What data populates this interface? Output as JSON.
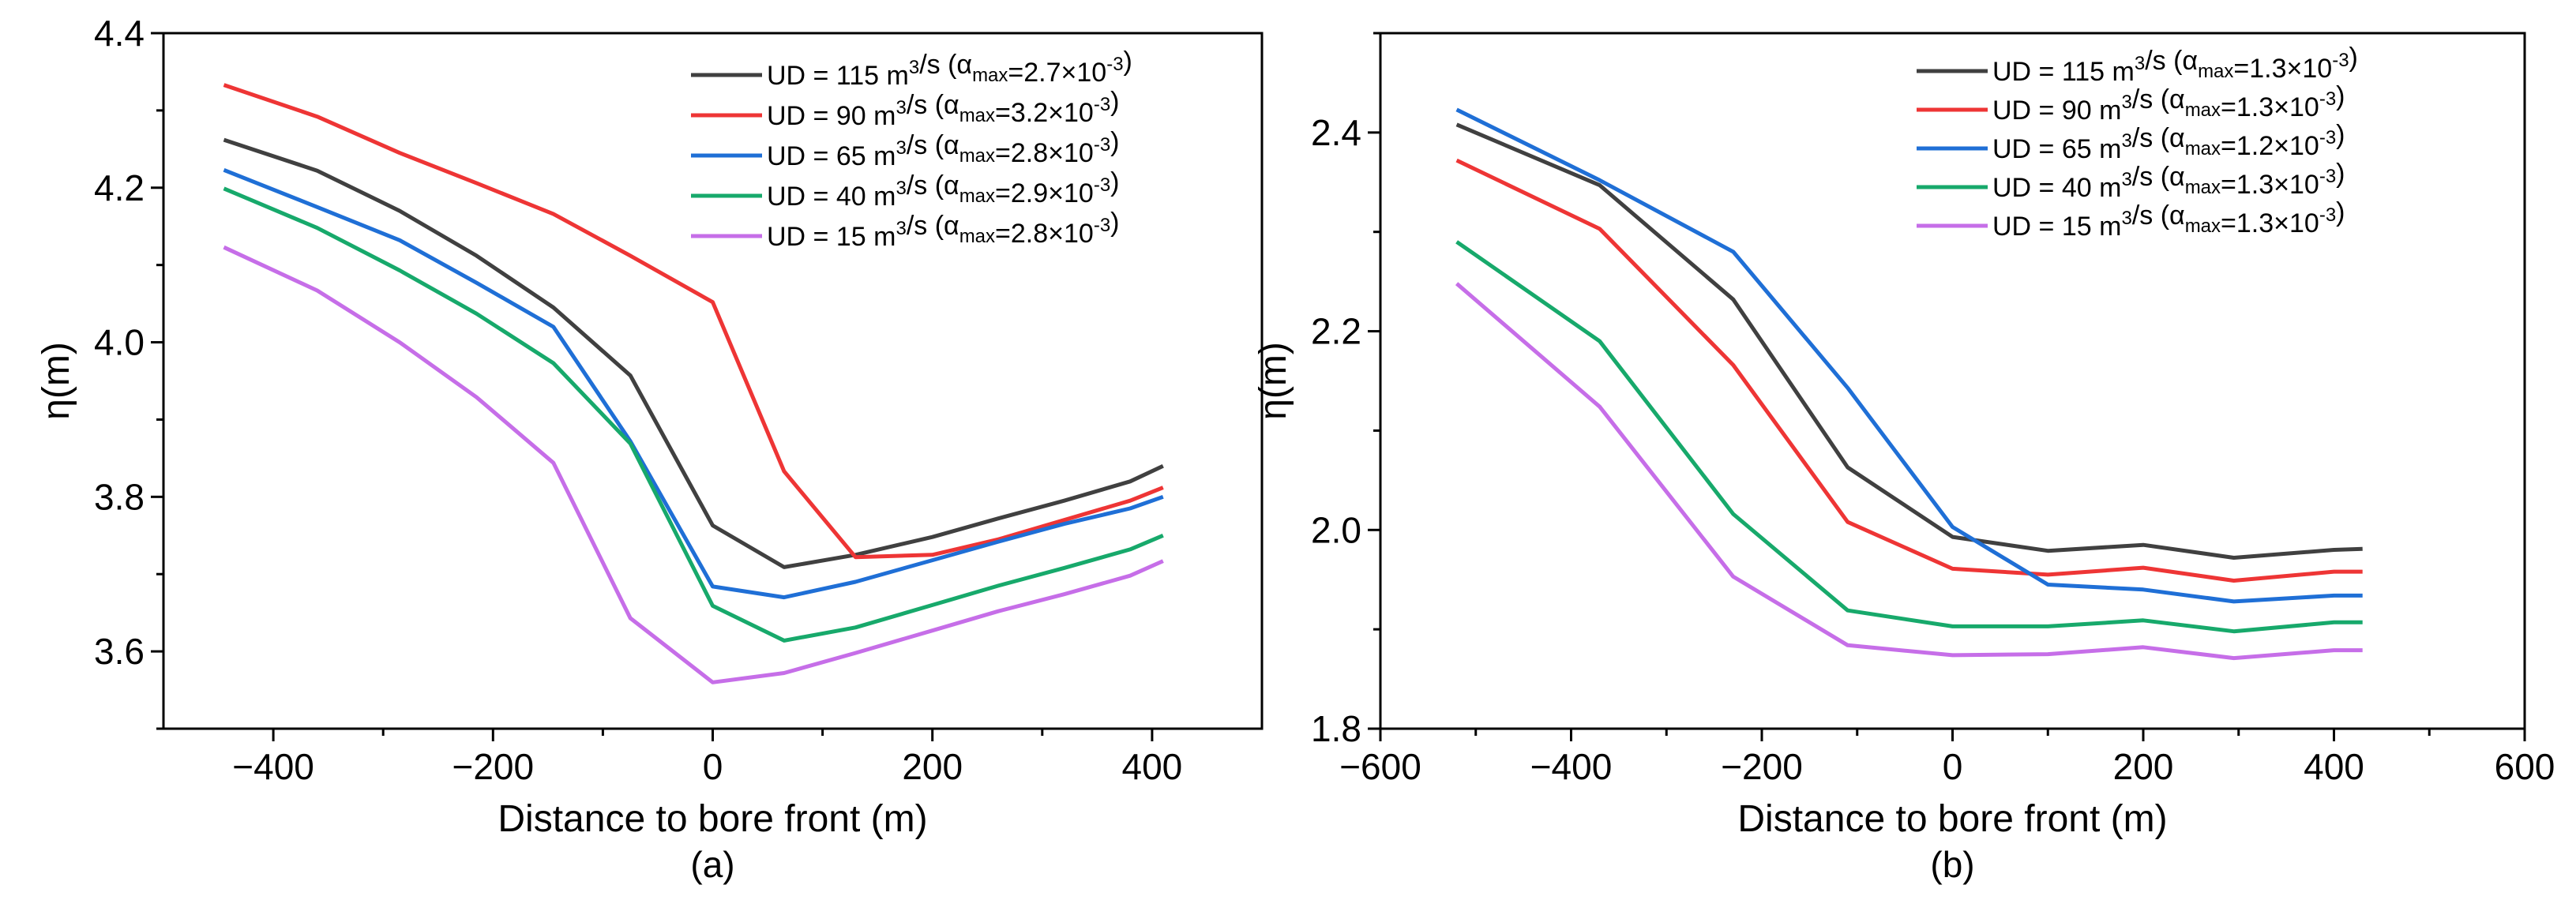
{
  "chart_data": [
    {
      "type": "line",
      "panel_label": "(a)",
      "xlabel": "Distance to bore front (m)",
      "ylabel": "η(m)",
      "xlim": [
        -500,
        500
      ],
      "ylim": [
        3.5,
        4.4
      ],
      "xticks": [
        -400,
        -200,
        0,
        200,
        400
      ],
      "xtick_labels": [
        "−400",
        "−200",
        "0",
        "200",
        "400"
      ],
      "yticks": [
        3.6,
        3.8,
        4.0,
        4.2,
        4.4
      ],
      "ytick_labels": [
        "3.6",
        "3.8",
        "4.0",
        "4.2",
        "4.4"
      ],
      "grid": false,
      "legend_position": "top-right",
      "series": [
        {
          "name": "UD = 115 m3/s (αmax=2.7×10-3)",
          "legend": {
            "ud": "UD = 115 m",
            "rate": "3",
            "unit": "/s (α",
            "sub": "max",
            "eq": "=2.7×10",
            "exp": "-3",
            "close": ")"
          },
          "color": "#404040",
          "x": [
            -445,
            -360,
            -285,
            -215,
            -145,
            -75,
            0,
            65,
            130,
            200,
            260,
            320,
            380,
            410
          ],
          "y": [
            4.262,
            4.222,
            4.17,
            4.112,
            4.045,
            3.957,
            3.763,
            3.709,
            3.725,
            3.748,
            3.772,
            3.795,
            3.82,
            3.84
          ]
        },
        {
          "name": "UD = 90 m3/s (αmax=3.2×10-3)",
          "legend": {
            "ud": "UD = 90 m",
            "rate": "3",
            "unit": "/s (α",
            "sub": "max",
            "eq": "=3.2×10",
            "exp": "-3",
            "close": ")"
          },
          "color": "#ee3535",
          "x": [
            -445,
            -360,
            -285,
            -215,
            -145,
            -75,
            0,
            65,
            130,
            200,
            260,
            320,
            380,
            410
          ],
          "y": [
            4.333,
            4.292,
            4.245,
            4.206,
            4.166,
            4.112,
            4.052,
            3.833,
            3.722,
            3.725,
            3.745,
            3.77,
            3.795,
            3.812
          ]
        },
        {
          "name": "UD = 65 m3/s (αmax=2.8×10-3)",
          "legend": {
            "ud": "UD = 65 m",
            "rate": "3",
            "unit": "/s (α",
            "sub": "max",
            "eq": "=2.8×10",
            "exp": "-3",
            "close": ")"
          },
          "color": "#1f6fd6",
          "x": [
            -445,
            -360,
            -285,
            -215,
            -145,
            -75,
            0,
            65,
            130,
            200,
            260,
            320,
            380,
            410
          ],
          "y": [
            4.223,
            4.175,
            4.132,
            4.077,
            4.02,
            3.872,
            3.684,
            3.67,
            3.69,
            3.718,
            3.742,
            3.765,
            3.785,
            3.8
          ]
        },
        {
          "name": "UD = 40 m3/s (αmax=2.9×10-3)",
          "legend": {
            "ud": "UD = 40 m",
            "rate": "3",
            "unit": "/s (α",
            "sub": "max",
            "eq": "=2.9×10",
            "exp": "-3",
            "close": ")"
          },
          "color": "#17a96b",
          "x": [
            -445,
            -360,
            -285,
            -215,
            -145,
            -75,
            0,
            65,
            130,
            200,
            260,
            320,
            380,
            410
          ],
          "y": [
            4.199,
            4.148,
            4.093,
            4.037,
            3.973,
            3.869,
            3.659,
            3.614,
            3.631,
            3.66,
            3.685,
            3.708,
            3.732,
            3.75
          ]
        },
        {
          "name": "UD = 15 m3/s (αmax=2.8×10-3)",
          "legend": {
            "ud": "UD = 15 m",
            "rate": "3",
            "unit": "/s (α",
            "sub": "max",
            "eq": "=2.8×10",
            "exp": "-3",
            "close": ")"
          },
          "color": "#c66ee8",
          "x": [
            -445,
            -360,
            -285,
            -215,
            -145,
            -75,
            0,
            65,
            130,
            200,
            260,
            320,
            380,
            410
          ],
          "y": [
            4.123,
            4.067,
            4.0,
            3.929,
            3.844,
            3.643,
            3.56,
            3.572,
            3.598,
            3.627,
            3.652,
            3.674,
            3.698,
            3.717
          ]
        }
      ]
    },
    {
      "type": "line",
      "panel_label": "(b)",
      "xlabel": "Distance to bore front (m)",
      "ylabel": "η(m)",
      "xlim": [
        -600,
        600
      ],
      "ylim": [
        1.8,
        2.5
      ],
      "xticks": [
        -600,
        -400,
        -200,
        0,
        200,
        400,
        600
      ],
      "xtick_labels": [
        "−600",
        "−400",
        "−200",
        "0",
        "200",
        "400",
        "600"
      ],
      "yticks": [
        1.8,
        2.0,
        2.2,
        2.4
      ],
      "ytick_labels": [
        "1.8",
        "2.0",
        "2.2",
        "2.4"
      ],
      "grid": false,
      "legend_position": "top-right",
      "series": [
        {
          "name": "UD = 115 m3/s (αmax=1.3×10-3)",
          "legend": {
            "ud": "UD = 115 m",
            "rate": "3",
            "unit": "/s (α",
            "sub": "max",
            "eq": "=1.3×10",
            "exp": "-3",
            "close": ")"
          },
          "color": "#404040",
          "x": [
            -520,
            -370,
            -230,
            -110,
            0,
            100,
            200,
            295,
            400,
            430
          ],
          "y": [
            2.408,
            2.347,
            2.232,
            2.063,
            1.993,
            1.979,
            1.985,
            1.972,
            1.98,
            1.981
          ]
        },
        {
          "name": "UD = 90 m3/s (αmax=1.3×10-3)",
          "legend": {
            "ud": "UD = 90 m",
            "rate": "3",
            "unit": "/s (α",
            "sub": "max",
            "eq": "=1.3×10",
            "exp": "-3",
            "close": ")"
          },
          "color": "#ee3535",
          "x": [
            -520,
            -370,
            -230,
            -110,
            0,
            100,
            200,
            295,
            400,
            430
          ],
          "y": [
            2.372,
            2.303,
            2.166,
            2.008,
            1.961,
            1.955,
            1.962,
            1.949,
            1.958,
            1.958
          ]
        },
        {
          "name": "UD = 65 m3/s (αmax=1.2×10-3)",
          "legend": {
            "ud": "UD = 65 m",
            "rate": "3",
            "unit": "/s (α",
            "sub": "max",
            "eq": "=1.2×10",
            "exp": "-3",
            "close": ")"
          },
          "color": "#1f6fd6",
          "x": [
            -520,
            -370,
            -230,
            -110,
            0,
            100,
            200,
            295,
            400,
            430
          ],
          "y": [
            2.423,
            2.352,
            2.28,
            2.143,
            2.003,
            1.945,
            1.94,
            1.928,
            1.934,
            1.934
          ]
        },
        {
          "name": "UD = 40 m3/s (αmax=1.3×10-3)",
          "legend": {
            "ud": "UD = 40 m",
            "rate": "3",
            "unit": "/s (α",
            "sub": "max",
            "eq": "=1.3×10",
            "exp": "-3",
            "close": ")"
          },
          "color": "#17a96b",
          "x": [
            -520,
            -370,
            -230,
            -110,
            0,
            100,
            200,
            295,
            400,
            430
          ],
          "y": [
            2.29,
            2.19,
            2.016,
            1.919,
            1.903,
            1.903,
            1.909,
            1.898,
            1.907,
            1.907
          ]
        },
        {
          "name": "UD = 15 m3/s (αmax=1.3×10-3)",
          "legend": {
            "ud": "UD = 15 m",
            "rate": "3",
            "unit": "/s (α",
            "sub": "max",
            "eq": "=1.3×10",
            "exp": "-3",
            "close": ")"
          },
          "color": "#c66ee8",
          "x": [
            -520,
            -370,
            -230,
            -110,
            0,
            100,
            200,
            295,
            400,
            430
          ],
          "y": [
            2.248,
            2.124,
            1.953,
            1.884,
            1.874,
            1.875,
            1.882,
            1.871,
            1.879,
            1.879
          ]
        }
      ]
    }
  ]
}
